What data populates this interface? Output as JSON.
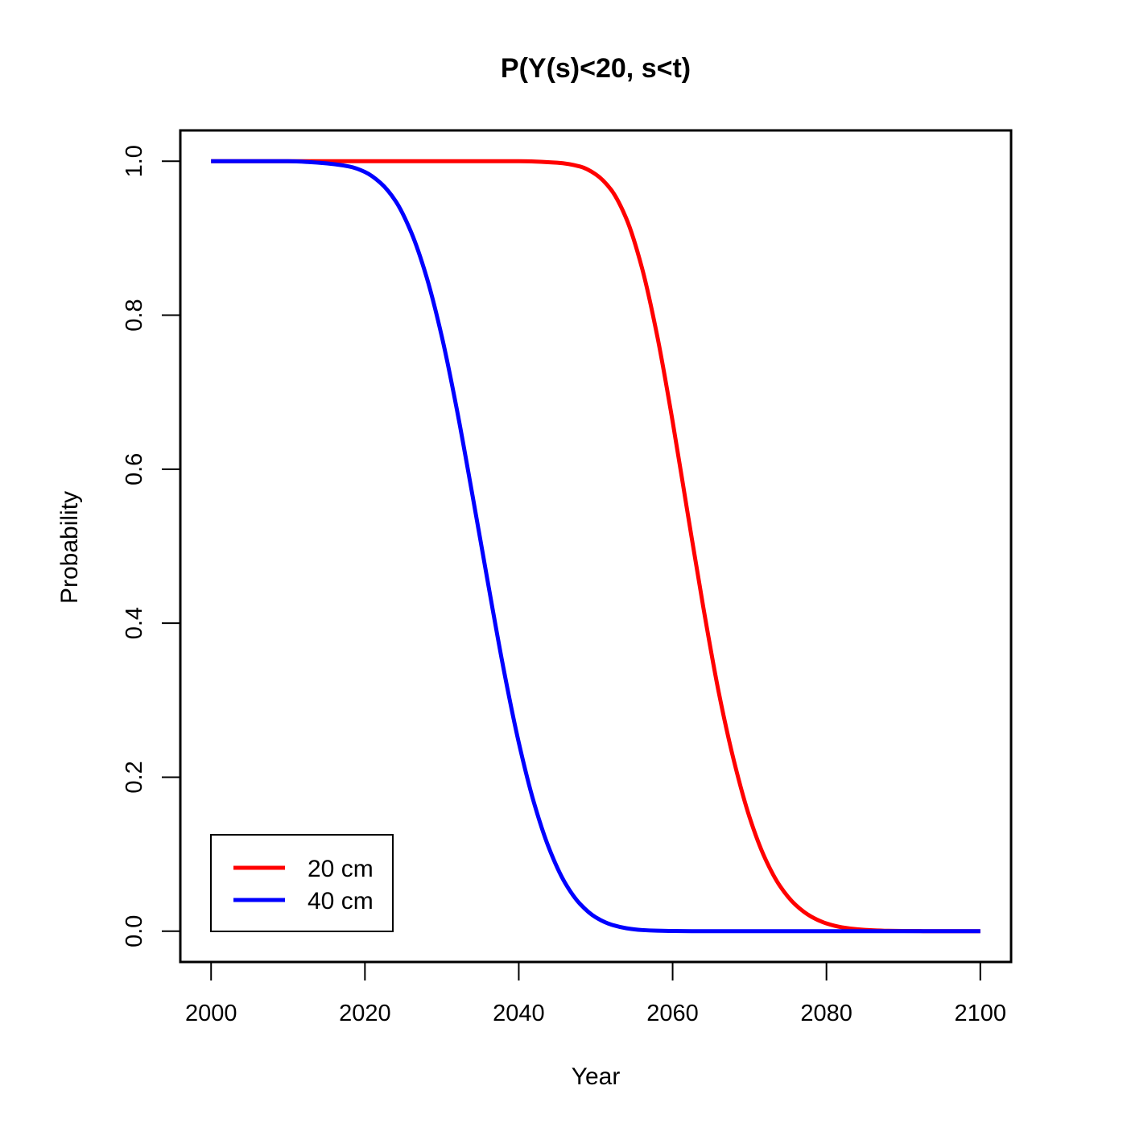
{
  "chart_data": {
    "type": "line",
    "title": "P(Y(s)<20, s<t)",
    "xlabel": "Year",
    "ylabel": "Probability",
    "xlim": [
      1996,
      2104
    ],
    "ylim": [
      -0.04,
      1.04
    ],
    "x_ticks": [
      2000,
      2020,
      2040,
      2060,
      2080,
      2100
    ],
    "y_ticks": [
      "0.0",
      "0.2",
      "0.4",
      "0.6",
      "0.8",
      "1.0"
    ],
    "grid": false,
    "legend_position": "bottom-left",
    "series": [
      {
        "name": "20 cm",
        "color": "#ff0000",
        "x": [
          2000,
          2010,
          2020,
          2030,
          2040,
          2045,
          2048,
          2050,
          2052,
          2054,
          2056,
          2058,
          2060,
          2062,
          2064,
          2066,
          2068,
          2070,
          2072,
          2074,
          2076,
          2078,
          2080,
          2082,
          2084,
          2086,
          2088,
          2090,
          2095,
          2100
        ],
        "values": [
          1.0,
          1.0,
          1.0,
          1.0,
          1.0,
          0.998,
          0.993,
          0.983,
          0.963,
          0.925,
          0.862,
          0.773,
          0.662,
          0.54,
          0.42,
          0.31,
          0.22,
          0.148,
          0.095,
          0.058,
          0.034,
          0.019,
          0.01,
          0.005,
          0.0025,
          0.0012,
          0.0005,
          0.0002,
          0.0,
          0.0
        ]
      },
      {
        "name": "40 cm",
        "color": "#0000ff",
        "x": [
          2000,
          2010,
          2014,
          2018,
          2020,
          2022,
          2024,
          2026,
          2028,
          2030,
          2032,
          2034,
          2036,
          2038,
          2040,
          2042,
          2044,
          2046,
          2048,
          2050,
          2052,
          2054,
          2056,
          2058,
          2060,
          2065,
          2070,
          2080,
          2090,
          2100
        ],
        "values": [
          1.0,
          1.0,
          0.998,
          0.993,
          0.986,
          0.972,
          0.948,
          0.908,
          0.85,
          0.772,
          0.675,
          0.565,
          0.452,
          0.342,
          0.245,
          0.166,
          0.106,
          0.063,
          0.035,
          0.018,
          0.0086,
          0.0038,
          0.0015,
          0.0006,
          0.0002,
          0.0,
          0.0,
          0.0,
          0.0,
          0.0
        ]
      }
    ]
  }
}
